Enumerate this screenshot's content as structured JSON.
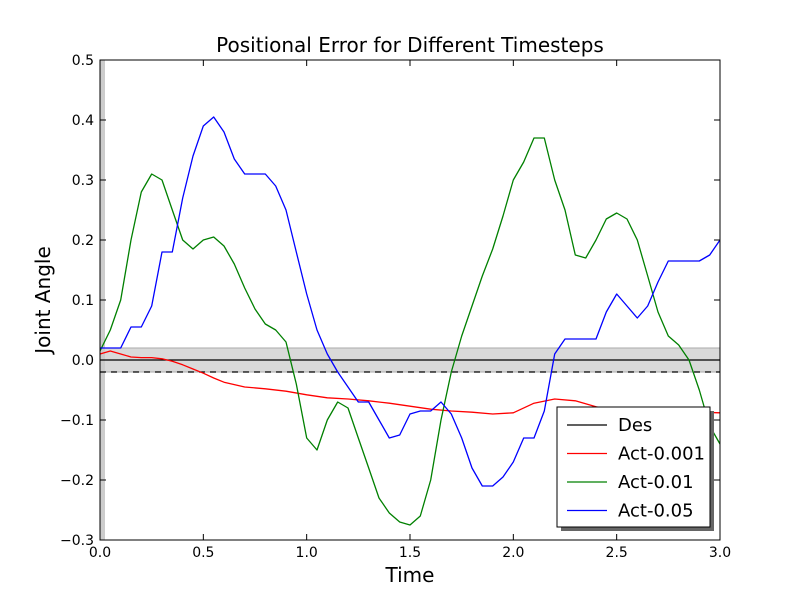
{
  "chart_data": {
    "type": "line",
    "title": "Positional Error for Different Timesteps",
    "xlabel": "Time",
    "ylabel": "Joint Angle",
    "xlim": [
      0.0,
      3.0
    ],
    "ylim": [
      -0.3,
      0.5
    ],
    "x_ticks": [
      "0.0",
      "0.5",
      "1.0",
      "1.5",
      "2.0",
      "2.5",
      "3.0"
    ],
    "y_ticks": [
      "−0.3",
      "−0.2",
      "−0.1",
      "0.0",
      "0.1",
      "0.2",
      "0.3",
      "0.4",
      "0.5"
    ],
    "x_tick_values": [
      0.0,
      0.5,
      1.0,
      1.5,
      2.0,
      2.5,
      3.0
    ],
    "y_tick_values": [
      -0.3,
      -0.2,
      -0.1,
      0.0,
      0.1,
      0.2,
      0.3,
      0.4,
      0.5
    ],
    "grid": false,
    "legend_position": "bottom-right",
    "tolerance_band": {
      "y_min": -0.02,
      "y_max": 0.02,
      "color": "#d9d9d9"
    },
    "dashed_line": {
      "y": -0.02,
      "color": "#000000"
    },
    "series": [
      {
        "name": "Des",
        "color": "#000000",
        "x": [
          0.0,
          3.0
        ],
        "y": [
          0.0,
          0.0
        ]
      },
      {
        "name": "Act-0.001",
        "color": "#ff0000",
        "x": [
          0.0,
          0.05,
          0.1,
          0.15,
          0.2,
          0.25,
          0.3,
          0.35,
          0.4,
          0.45,
          0.5,
          0.55,
          0.6,
          0.7,
          0.8,
          0.9,
          1.0,
          1.1,
          1.2,
          1.3,
          1.4,
          1.5,
          1.6,
          1.7,
          1.8,
          1.9,
          2.0,
          2.1,
          2.2,
          2.3,
          2.4,
          2.5,
          2.6,
          2.7,
          2.8,
          2.9,
          3.0
        ],
        "y": [
          0.01,
          0.015,
          0.01,
          0.005,
          0.004,
          0.004,
          0.002,
          -0.002,
          -0.008,
          -0.015,
          -0.022,
          -0.03,
          -0.037,
          -0.045,
          -0.048,
          -0.052,
          -0.058,
          -0.063,
          -0.065,
          -0.068,
          -0.072,
          -0.077,
          -0.082,
          -0.085,
          -0.087,
          -0.09,
          -0.088,
          -0.072,
          -0.065,
          -0.068,
          -0.078,
          -0.085,
          -0.085,
          -0.083,
          -0.085,
          -0.087,
          -0.088
        ]
      },
      {
        "name": "Act-0.01",
        "color": "#008000",
        "x": [
          0.0,
          0.05,
          0.1,
          0.15,
          0.2,
          0.25,
          0.3,
          0.35,
          0.4,
          0.45,
          0.5,
          0.55,
          0.6,
          0.65,
          0.7,
          0.75,
          0.8,
          0.85,
          0.9,
          0.95,
          1.0,
          1.05,
          1.1,
          1.15,
          1.2,
          1.25,
          1.3,
          1.35,
          1.4,
          1.45,
          1.5,
          1.55,
          1.6,
          1.65,
          1.7,
          1.75,
          1.8,
          1.85,
          1.9,
          1.95,
          2.0,
          2.05,
          2.1,
          2.15,
          2.2,
          2.25,
          2.3,
          2.35,
          2.4,
          2.45,
          2.5,
          2.55,
          2.6,
          2.65,
          2.7,
          2.75,
          2.8,
          2.85,
          2.9,
          2.95,
          3.0
        ],
        "y": [
          0.015,
          0.05,
          0.1,
          0.2,
          0.28,
          0.31,
          0.3,
          0.25,
          0.2,
          0.185,
          0.2,
          0.205,
          0.19,
          0.16,
          0.12,
          0.085,
          0.06,
          0.05,
          0.03,
          -0.04,
          -0.13,
          -0.15,
          -0.1,
          -0.07,
          -0.08,
          -0.13,
          -0.18,
          -0.23,
          -0.255,
          -0.27,
          -0.275,
          -0.26,
          -0.2,
          -0.1,
          -0.02,
          0.04,
          0.09,
          0.14,
          0.185,
          0.24,
          0.3,
          0.33,
          0.37,
          0.37,
          0.3,
          0.25,
          0.175,
          0.17,
          0.2,
          0.235,
          0.245,
          0.235,
          0.2,
          0.14,
          0.08,
          0.04,
          0.025,
          0.0,
          -0.05,
          -0.11,
          -0.14
        ]
      },
      {
        "name": "Act-0.05",
        "color": "#0000ff",
        "x": [
          0.0,
          0.05,
          0.1,
          0.15,
          0.2,
          0.25,
          0.3,
          0.35,
          0.4,
          0.45,
          0.5,
          0.55,
          0.6,
          0.65,
          0.7,
          0.75,
          0.8,
          0.85,
          0.9,
          0.95,
          1.0,
          1.05,
          1.1,
          1.15,
          1.2,
          1.25,
          1.3,
          1.35,
          1.4,
          1.45,
          1.5,
          1.55,
          1.6,
          1.65,
          1.7,
          1.75,
          1.8,
          1.85,
          1.9,
          1.95,
          2.0,
          2.05,
          2.1,
          2.15,
          2.2,
          2.25,
          2.3,
          2.35,
          2.4,
          2.45,
          2.5,
          2.55,
          2.6,
          2.65,
          2.7,
          2.75,
          2.8,
          2.85,
          2.9,
          2.95,
          3.0
        ],
        "y": [
          0.02,
          0.02,
          0.02,
          0.055,
          0.055,
          0.09,
          0.18,
          0.18,
          0.27,
          0.34,
          0.39,
          0.405,
          0.38,
          0.335,
          0.31,
          0.31,
          0.31,
          0.29,
          0.25,
          0.18,
          0.11,
          0.05,
          0.01,
          -0.02,
          -0.045,
          -0.07,
          -0.07,
          -0.1,
          -0.13,
          -0.125,
          -0.09,
          -0.085,
          -0.085,
          -0.07,
          -0.09,
          -0.13,
          -0.18,
          -0.21,
          -0.21,
          -0.195,
          -0.17,
          -0.13,
          -0.13,
          -0.085,
          0.01,
          0.035,
          0.035,
          0.035,
          0.035,
          0.08,
          0.11,
          0.09,
          0.07,
          0.09,
          0.13,
          0.165,
          0.165,
          0.165,
          0.165,
          0.175,
          0.2
        ]
      }
    ]
  }
}
